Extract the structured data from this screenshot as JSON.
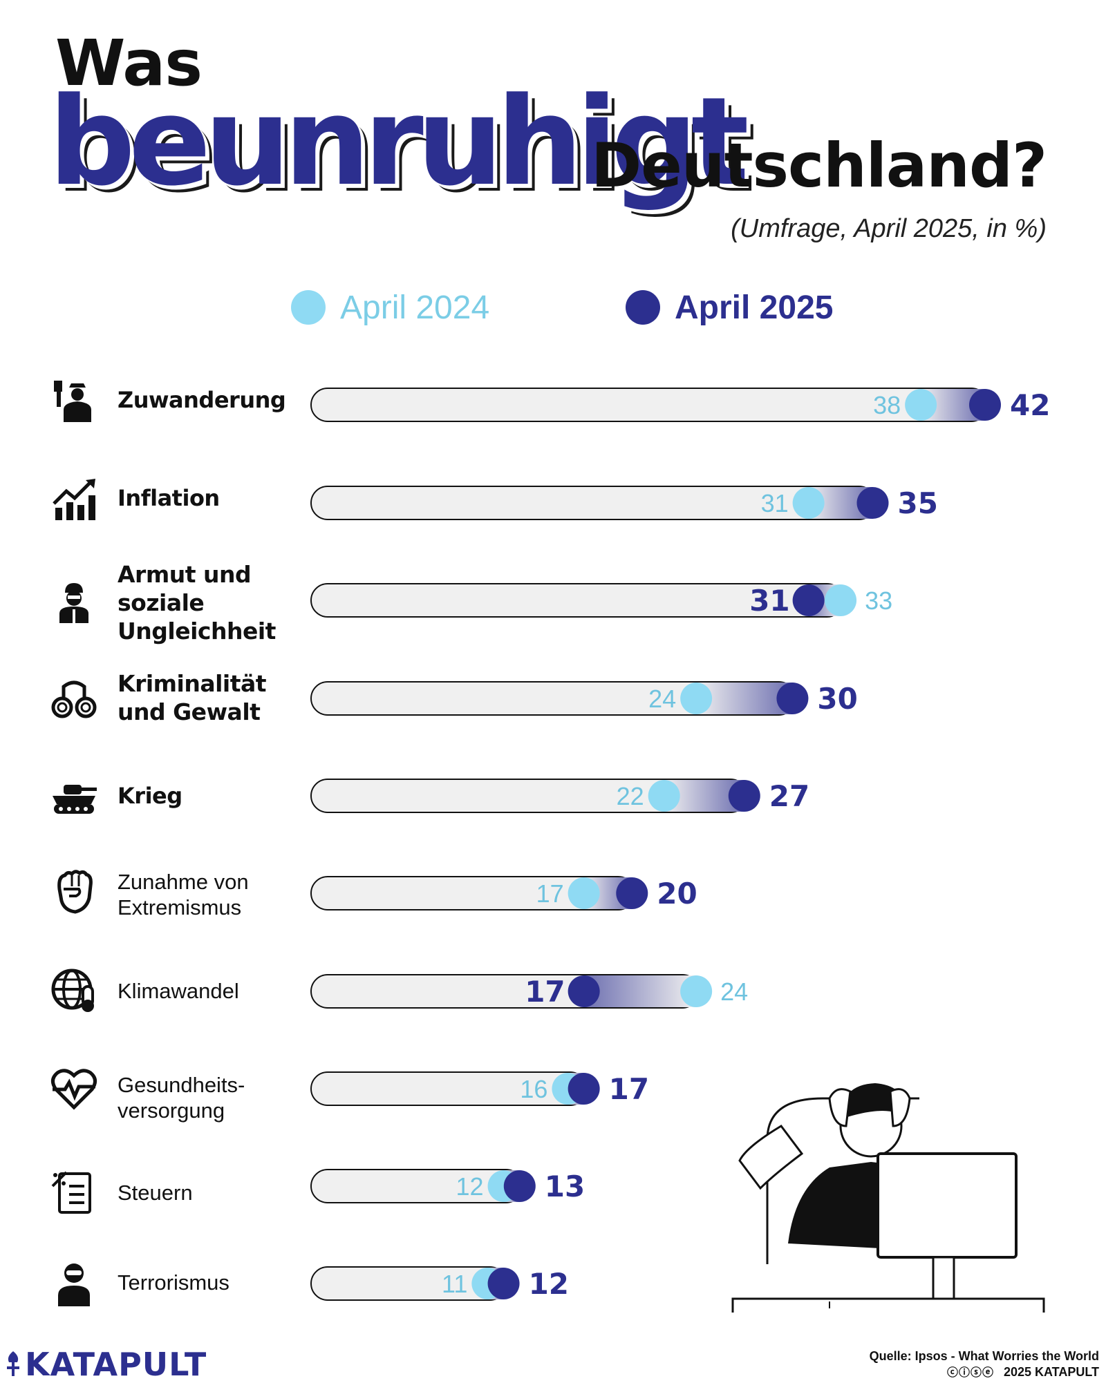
{
  "title": {
    "line1": "Was",
    "highlight": "beunruhigt",
    "rest": "Deutschland?"
  },
  "subtitle": "(Umfrage, April 2025, in %)",
  "legend": {
    "y2024": "April 2024",
    "y2025": "April 2025"
  },
  "colors": {
    "y2024": "#8fdaf3",
    "y2024_text": "#6fc3df",
    "y2025": "#2c2f8f",
    "track": "#f0f0f0"
  },
  "categories": [
    {
      "label_lines": [
        "Zuwanderung"
      ],
      "bold": true,
      "icon": "border-officer-icon"
    },
    {
      "label_lines": [
        "Inflation"
      ],
      "bold": true,
      "icon": "rising-chart-icon"
    },
    {
      "label_lines": [
        "Armut und",
        "soziale",
        "Ungleichheit"
      ],
      "bold": true,
      "icon": "poor-person-icon"
    },
    {
      "label_lines": [
        "Kriminalität",
        "und Gewalt"
      ],
      "bold": true,
      "icon": "handcuffs-icon"
    },
    {
      "label_lines": [
        "Krieg"
      ],
      "bold": true,
      "icon": "tank-icon"
    },
    {
      "label_lines": [
        "Zunahme von",
        "Extremismus"
      ],
      "bold": false,
      "icon": "raised-fist-icon"
    },
    {
      "label_lines": [
        "Klimawandel"
      ],
      "bold": false,
      "icon": "globe-thermometer-icon"
    },
    {
      "label_lines": [
        "Gesundheits-",
        "versorgung"
      ],
      "bold": false,
      "icon": "heartbeat-icon"
    },
    {
      "label_lines": [
        "Steuern"
      ],
      "bold": false,
      "icon": "tax-document-icon"
    },
    {
      "label_lines": [
        "Terrorismus"
      ],
      "bold": false,
      "icon": "masked-person-icon"
    }
  ],
  "chart_data": {
    "type": "dumbbell",
    "title": "Was beunruhigt Deutschland?",
    "unit": "%",
    "categories": [
      "Zuwanderung",
      "Inflation",
      "Armut und soziale Ungleichheit",
      "Kriminalität und Gewalt",
      "Krieg",
      "Zunahme von Extremismus",
      "Klimawandel",
      "Gesundheitsversorgung",
      "Steuern",
      "Terrorismus"
    ],
    "series": [
      {
        "name": "April 2024",
        "values": [
          38,
          31,
          33,
          24,
          22,
          17,
          24,
          16,
          12,
          11
        ]
      },
      {
        "name": "April 2025",
        "values": [
          42,
          35,
          31,
          30,
          27,
          20,
          17,
          17,
          13,
          12
        ]
      }
    ],
    "xlim": [
      0,
      42
    ]
  },
  "footer": {
    "brand": "KATAPULT",
    "source": "Quelle: Ipsos - What Worries the World",
    "license": "ⓒⓘⓢⓔ",
    "copyright": "2025 KATAPULT"
  }
}
